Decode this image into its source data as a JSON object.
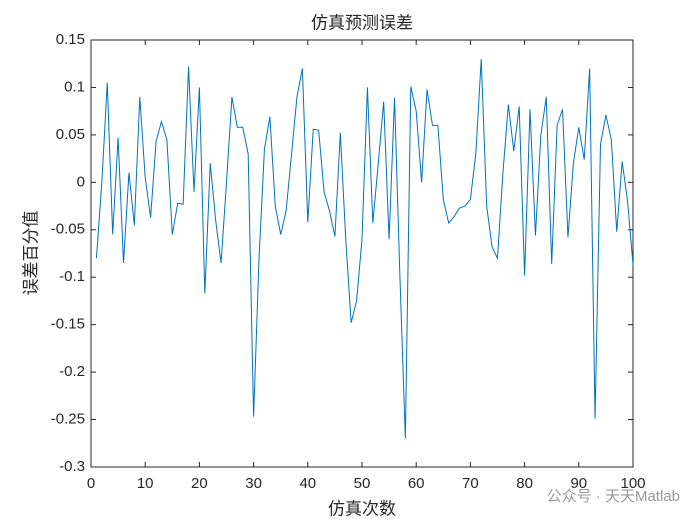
{
  "chart_data": {
    "type": "line",
    "title": "仿真预测误差",
    "xlabel": "仿真次数",
    "ylabel": "误差百分值",
    "annotation": "公众号 · 天天Matlab",
    "x": [
      1,
      2,
      3,
      4,
      5,
      6,
      7,
      8,
      9,
      10,
      11,
      12,
      13,
      14,
      15,
      16,
      17,
      18,
      19,
      20,
      21,
      22,
      23,
      24,
      25,
      26,
      27,
      28,
      29,
      30,
      31,
      32,
      33,
      34,
      35,
      36,
      37,
      38,
      39,
      40,
      41,
      42,
      43,
      44,
      45,
      46,
      47,
      48,
      49,
      50,
      51,
      52,
      53,
      54,
      55,
      56,
      57,
      58,
      59,
      60,
      61,
      62,
      63,
      64,
      65,
      66,
      67,
      68,
      69,
      70,
      71,
      72,
      73,
      74,
      75,
      76,
      77,
      78,
      79,
      80,
      81,
      82,
      83,
      84,
      85,
      86,
      87,
      88,
      89,
      90,
      91,
      92,
      93,
      94,
      95,
      96,
      97,
      98,
      99,
      100
    ],
    "series": [
      {
        "name": "误差",
        "color": "#0072bd",
        "values": [
          -0.08,
          0.0,
          0.105,
          -0.055,
          0.047,
          -0.085,
          0.01,
          -0.045,
          0.09,
          0.005,
          -0.037,
          0.043,
          0.064,
          0.045,
          -0.055,
          -0.022,
          -0.023,
          0.122,
          -0.01,
          0.1,
          -0.117,
          0.02,
          -0.04,
          -0.085,
          0.0,
          0.09,
          0.058,
          0.058,
          0.03,
          -0.247,
          -0.08,
          0.035,
          0.069,
          -0.025,
          -0.055,
          -0.03,
          0.03,
          0.09,
          0.12,
          -0.042,
          0.056,
          0.055,
          -0.01,
          -0.03,
          -0.057,
          0.052,
          -0.06,
          -0.148,
          -0.125,
          -0.06,
          0.1,
          -0.043,
          0.02,
          0.085,
          -0.06,
          0.089,
          -0.1,
          -0.27,
          0.101,
          0.075,
          0.0,
          0.098,
          0.06,
          0.06,
          -0.018,
          -0.043,
          -0.036,
          -0.027,
          -0.025,
          -0.018,
          0.03,
          0.13,
          -0.025,
          -0.068,
          -0.08,
          0.01,
          0.082,
          0.033,
          0.08,
          -0.098,
          0.077,
          -0.056,
          0.05,
          0.09,
          -0.086,
          0.06,
          0.077,
          -0.058,
          0.02,
          0.058,
          0.024,
          0.12,
          -0.249,
          0.04,
          0.071,
          0.045,
          -0.052,
          0.022,
          -0.02,
          -0.087
        ]
      }
    ],
    "xlim": [
      0,
      100
    ],
    "xticks": [
      0,
      10,
      20,
      30,
      40,
      50,
      60,
      70,
      80,
      90,
      100
    ],
    "ylim": [
      -0.3,
      0.15
    ],
    "yticks": [
      -0.3,
      -0.25,
      -0.2,
      -0.15,
      -0.1,
      -0.05,
      0,
      0.05,
      0.1,
      0.15
    ]
  }
}
